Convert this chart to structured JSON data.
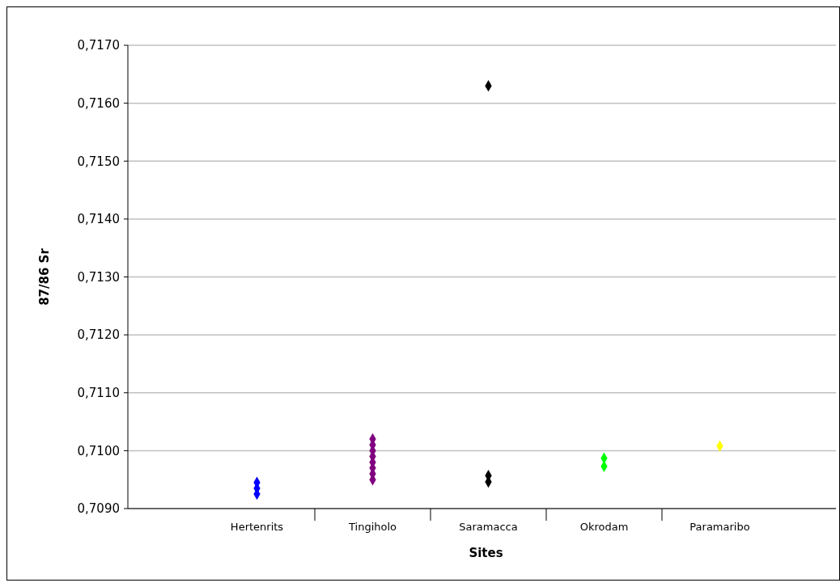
{
  "chart_data": {
    "type": "scatter",
    "xlabel": "Sites",
    "ylabel": "87/86 Sr",
    "categories": [
      "Hertenrits",
      "Tingiholo",
      "Saramacca",
      "Okrodam",
      "Paramaribo"
    ],
    "ylim": [
      0.709,
      0.717
    ],
    "yticks": [
      {
        "value": 0.709,
        "label": "0,7090"
      },
      {
        "value": 0.71,
        "label": "0,7100"
      },
      {
        "value": 0.711,
        "label": "0,7110"
      },
      {
        "value": 0.712,
        "label": "0,7120"
      },
      {
        "value": 0.713,
        "label": "0,7130"
      },
      {
        "value": 0.714,
        "label": "0,7140"
      },
      {
        "value": 0.715,
        "label": "0,7150"
      },
      {
        "value": 0.716,
        "label": "0,7160"
      },
      {
        "value": 0.717,
        "label": "0,7170"
      }
    ],
    "grid": "y",
    "marker": "diamond",
    "series": [
      {
        "color": "#0000ff",
        "x": [
          "Hertenrits",
          "Hertenrits",
          "Hertenrits"
        ],
        "values": [
          0.70945,
          0.70935,
          0.70925
        ]
      },
      {
        "color": "#800080",
        "x": [
          "Tingiholo",
          "Tingiholo",
          "Tingiholo",
          "Tingiholo",
          "Tingiholo",
          "Tingiholo",
          "Tingiholo",
          "Tingiholo"
        ],
        "values": [
          0.7102,
          0.7101,
          0.71,
          0.7099,
          0.7098,
          0.7097,
          0.7096,
          0.7095
        ]
      },
      {
        "color": "#000000",
        "x": [
          "Saramacca",
          "Saramacca",
          "Saramacca"
        ],
        "values": [
          0.7163,
          0.70957,
          0.70946
        ]
      },
      {
        "color": "#00ff00",
        "x": [
          "Okrodam",
          "Okrodam"
        ],
        "values": [
          0.70987,
          0.70973
        ]
      },
      {
        "color": "#ffff00",
        "x": [
          "Paramaribo"
        ],
        "values": [
          0.71008
        ]
      }
    ]
  }
}
